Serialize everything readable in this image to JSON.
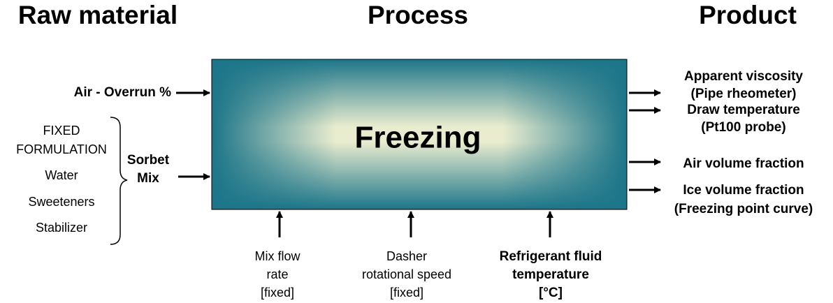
{
  "headers": {
    "raw_material": "Raw material",
    "process": "Process",
    "product": "Product"
  },
  "process_box": {
    "label": "Freezing"
  },
  "inputs": {
    "air": "Air - Overrun %",
    "mix": [
      "Sorbet",
      "Mix"
    ]
  },
  "formulation": [
    "FIXED",
    "FORMULATION",
    "Water",
    "Sweeteners",
    "Stabilizer"
  ],
  "outputs": [
    [
      "Apparent viscosity",
      "(Pipe rheometer)"
    ],
    [
      "Draw temperature",
      "(Pt100 probe)"
    ],
    [
      "Air volume fraction"
    ],
    [
      "Ice volume fraction",
      "(Freezing point curve)"
    ]
  ],
  "parameters": [
    [
      "Mix flow",
      "rate",
      "[fixed]"
    ],
    [
      "Dasher",
      "rotational speed",
      "[fixed]"
    ],
    [
      "Refrigerant fluid",
      "temperature",
      "[°C]"
    ]
  ]
}
